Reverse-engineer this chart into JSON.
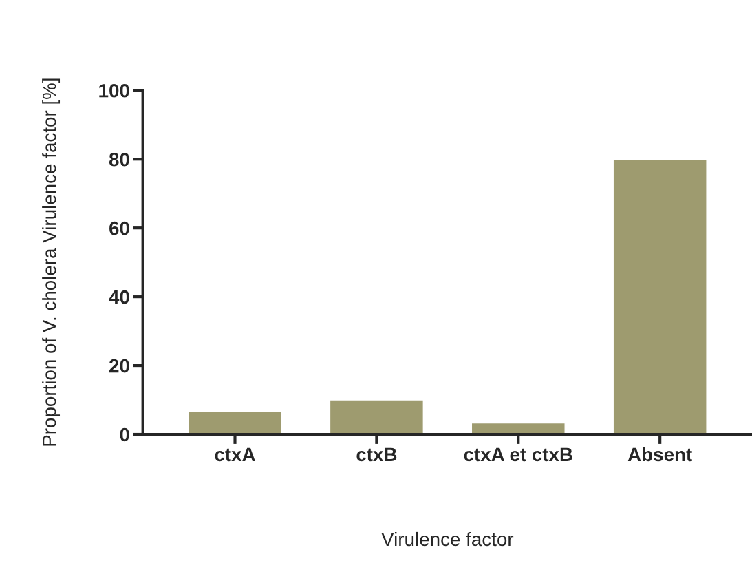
{
  "chart_data": {
    "type": "bar",
    "xlabel": "Virulence factor",
    "ylabel": "Proportion of V. cholera Virulence factor [%]",
    "categories": [
      "ctxA",
      "ctxB",
      "ctxA et ctxB",
      "Absent"
    ],
    "values": [
      6.7,
      10,
      3.3,
      80
    ],
    "color": "#9e9b6f",
    "ylim": [
      0,
      100
    ],
    "yticks": [
      0,
      20,
      40,
      60,
      80,
      100
    ],
    "grid": false
  }
}
